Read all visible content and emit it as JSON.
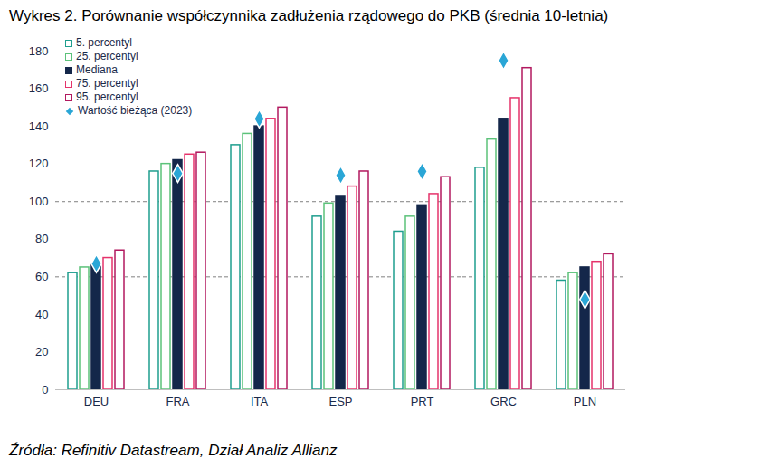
{
  "chart_data": {
    "type": "bar",
    "title": "Wykres 2. Porównanie współczynnika zadłużenia rządowego do PKB (średnia 10-letnia)",
    "caption": "Źródła: Refinitiv Datastream, Dział Analiz Allianz",
    "categories": [
      "DEU",
      "FRA",
      "ITA",
      "ESP",
      "PRT",
      "GRC",
      "PLN"
    ],
    "series": [
      {
        "name": "5. percentyl",
        "color": "#1f9e8e",
        "marker": "square_open",
        "values": [
          62,
          116,
          130,
          92,
          84,
          118,
          58
        ]
      },
      {
        "name": "25. percentyl",
        "color": "#5cc27a",
        "marker": "square_open",
        "values": [
          65,
          120,
          136,
          99,
          92,
          133,
          62
        ]
      },
      {
        "name": "Mediana",
        "color": "#14274a",
        "marker": "square",
        "values": [
          67,
          122,
          140,
          103,
          98,
          144,
          65
        ]
      },
      {
        "name": "75. percentyl",
        "color": "#e5336b",
        "marker": "square_open",
        "values": [
          70,
          125,
          144,
          108,
          104,
          155,
          68
        ]
      },
      {
        "name": "95. percentyl",
        "color": "#b2195f",
        "marker": "square_open",
        "values": [
          74,
          126,
          150,
          116,
          113,
          171,
          72
        ]
      },
      {
        "name": "Wartość bieżąca (2023)",
        "type": "scatter",
        "color": "#2aa6d6",
        "marker": "diamond",
        "values": [
          67,
          115,
          144,
          114,
          116,
          175,
          48
        ]
      }
    ],
    "ylim": [
      0,
      180
    ],
    "yticks": [
      0,
      20,
      40,
      60,
      80,
      100,
      120,
      140,
      160,
      180
    ],
    "reference_lines": [
      60,
      100
    ],
    "grid": false,
    "legend": "upper left"
  }
}
